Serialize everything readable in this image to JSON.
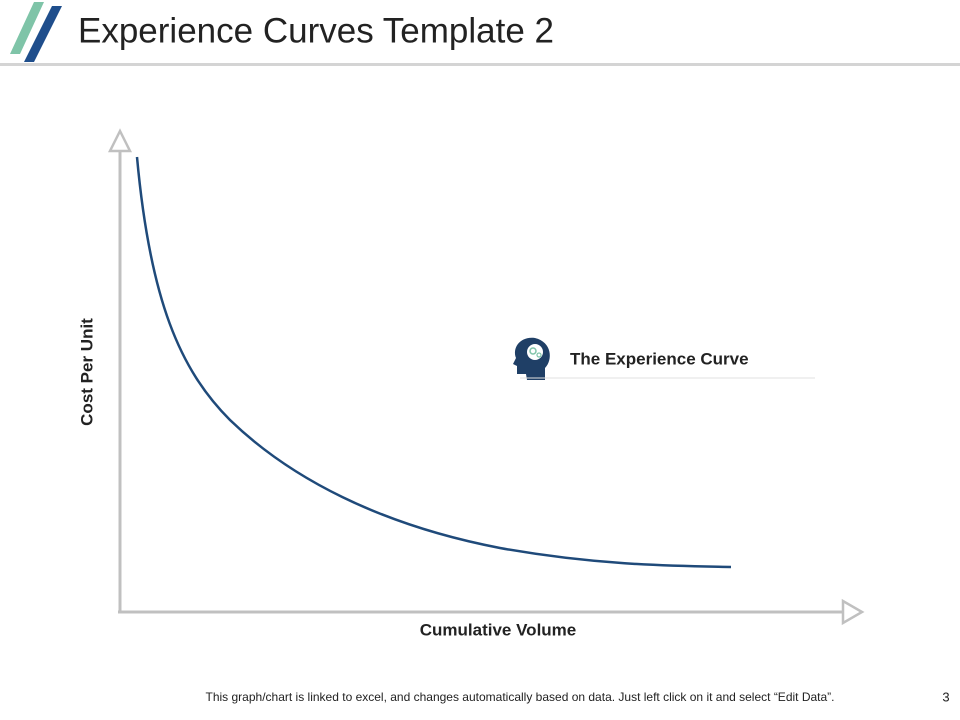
{
  "header": {
    "title": "Experience Curves Template 2"
  },
  "diagram": {
    "y_axis_label": "Cost Per Unit",
    "x_axis_label": "Cumulative Volume",
    "legend_label": "The Experience Curve"
  },
  "footer": {
    "note": "This graph/chart is linked to excel, and changes automatically based on data. Just left click on it and select “Edit Data”.",
    "page_number": 3
  }
}
